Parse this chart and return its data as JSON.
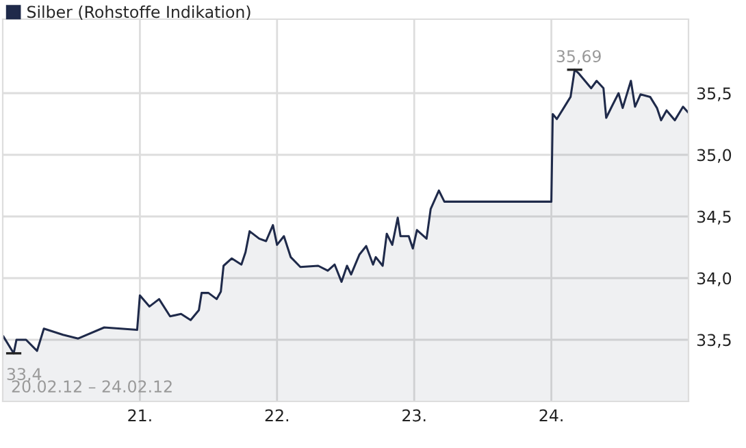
{
  "chart_data": {
    "type": "area",
    "x": [
      20.003,
      20.08,
      20.1,
      20.17,
      20.25,
      20.3,
      20.44,
      20.55,
      20.74,
      20.98,
      21.0,
      21.07,
      21.14,
      21.22,
      21.3,
      21.37,
      21.43,
      21.45,
      21.5,
      21.56,
      21.59,
      21.61,
      21.67,
      21.74,
      21.77,
      21.8,
      21.87,
      21.92,
      21.97,
      22.0,
      22.05,
      22.1,
      22.17,
      22.3,
      22.37,
      22.42,
      22.47,
      22.51,
      22.54,
      22.6,
      22.65,
      22.7,
      22.72,
      22.77,
      22.8,
      22.84,
      22.88,
      22.9,
      22.96,
      22.99,
      23.02,
      23.09,
      23.12,
      23.18,
      23.22,
      24.0,
      24.01,
      24.04,
      24.09,
      24.14,
      24.17,
      24.2,
      24.29,
      24.33,
      24.38,
      24.4,
      24.44,
      24.49,
      24.52,
      24.58,
      24.61,
      24.65,
      24.72,
      24.77,
      24.8,
      24.84,
      24.9,
      24.96,
      25.0
    ],
    "series": [
      {
        "name": "Silber (Rohstoffe Indikation)",
        "color": "#1f2a4a",
        "values": [
          33.53,
          33.39,
          33.5,
          33.5,
          33.41,
          33.59,
          33.54,
          33.51,
          33.6,
          33.58,
          33.86,
          33.77,
          33.83,
          33.69,
          33.71,
          33.66,
          33.74,
          33.88,
          33.88,
          33.83,
          33.89,
          34.1,
          34.16,
          34.11,
          34.21,
          34.38,
          34.32,
          34.3,
          34.43,
          34.27,
          34.34,
          34.17,
          34.09,
          34.1,
          34.06,
          34.11,
          33.97,
          34.1,
          34.03,
          34.19,
          34.26,
          34.11,
          34.17,
          34.1,
          34.36,
          34.27,
          34.49,
          34.34,
          34.34,
          34.24,
          34.39,
          34.32,
          34.56,
          34.71,
          34.62,
          34.62,
          35.33,
          35.29,
          35.38,
          35.47,
          35.69,
          35.66,
          35.54,
          35.6,
          35.54,
          35.3,
          35.39,
          35.5,
          35.38,
          35.6,
          35.39,
          35.49,
          35.47,
          35.38,
          35.28,
          35.36,
          35.28,
          35.39,
          35.34
        ]
      }
    ],
    "xlim": [
      20,
      25
    ],
    "xticks": [
      {
        "value": 21,
        "label": "21."
      },
      {
        "value": 22,
        "label": "22."
      },
      {
        "value": 23,
        "label": "23."
      },
      {
        "value": 24,
        "label": "24."
      }
    ],
    "ylim": [
      33.0,
      36.1
    ],
    "yticks": [
      {
        "value": 33.5,
        "label": "33,5"
      },
      {
        "value": 34.0,
        "label": "34,0"
      },
      {
        "value": 34.5,
        "label": "34,5"
      },
      {
        "value": 35.0,
        "label": "35,0"
      },
      {
        "value": 35.5,
        "label": "35,5"
      }
    ],
    "annotations": [
      {
        "text": "35,69",
        "x": 24.17,
        "y": 35.69
      },
      {
        "text": "33,4",
        "x": 20.08,
        "y": 33.39
      },
      "20.02.12 – 24.02.12"
    ],
    "grid": true,
    "legend": "top left"
  }
}
